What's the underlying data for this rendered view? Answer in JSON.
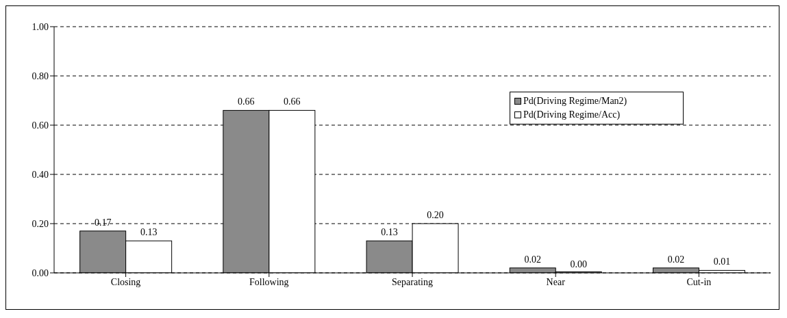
{
  "chart_data": {
    "type": "bar",
    "categories": [
      "Closing",
      "Following",
      "Separating",
      "Near",
      "Cut-in"
    ],
    "series": [
      {
        "name": "Pd(Driving Regime/Man2)",
        "color": "#8a8a8a",
        "values": [
          0.17,
          0.66,
          0.13,
          0.02,
          0.02
        ],
        "value_labels": [
          "0.17",
          "0.66",
          "0.13",
          "0.02",
          "0.02"
        ]
      },
      {
        "name": "Pd(Driving Regime/Acc)",
        "color": "#ffffff",
        "values": [
          0.13,
          0.66,
          0.2,
          0.0,
          0.01
        ],
        "value_labels": [
          "0.13",
          "0.66",
          "0.20",
          "0.00",
          "0.01"
        ]
      }
    ],
    "ylim": [
      0,
      1
    ],
    "yticks": [
      {
        "value": 0,
        "label": "0.00"
      },
      {
        "value": 0.2,
        "label": "0.20"
      },
      {
        "value": 0.4,
        "label": "0.40"
      },
      {
        "value": 0.6,
        "label": "0.60"
      },
      {
        "value": 0.8,
        "label": "0.80"
      },
      {
        "value": 1,
        "label": "1.00"
      }
    ],
    "grid": "y",
    "legend": "top right"
  }
}
